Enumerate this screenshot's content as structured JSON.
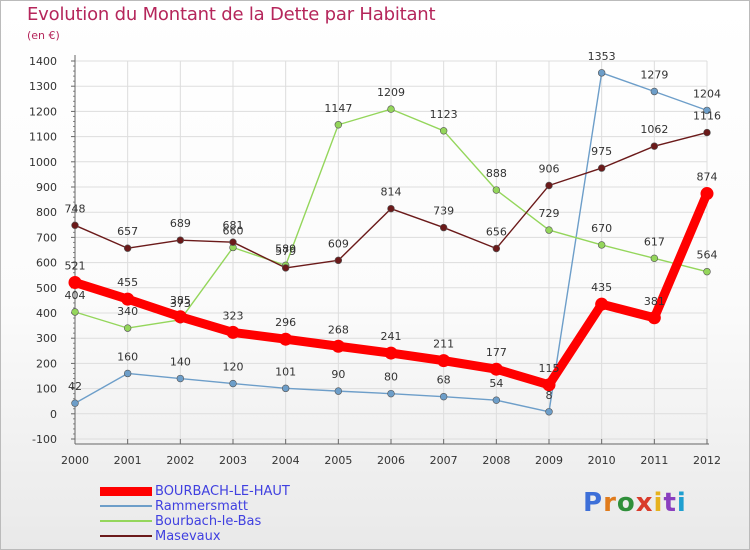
{
  "title": "Evolution du Montant de la Dette par Habitant",
  "unit": "(en €)",
  "brand": "Proxiti",
  "chart_data": {
    "type": "line",
    "title": "Evolution du Montant de la Dette par Habitant",
    "subtitle": "(en €)",
    "xlabel": "",
    "ylabel": "",
    "ylim": [
      -100,
      1400
    ],
    "yticks": [
      -100,
      0,
      100,
      200,
      300,
      400,
      500,
      600,
      700,
      800,
      900,
      1000,
      1100,
      1200,
      1300,
      1400
    ],
    "grid": true,
    "legend_position": "bottom-left",
    "x": [
      "2000",
      "2001",
      "2002",
      "2003",
      "2004",
      "2005",
      "2006",
      "2007",
      "2008",
      "2009",
      "2010",
      "2011",
      "2012"
    ],
    "series": [
      {
        "name": "BOURBACH-LE-HAUT",
        "color": "#ff0000",
        "values": [
          521,
          455,
          385,
          323,
          296,
          268,
          241,
          211,
          177,
          115,
          435,
          381,
          874
        ],
        "labels": [
          "521",
          "455",
          "385",
          "323",
          "296",
          "268",
          "241",
          "211",
          "177",
          "115",
          "435",
          "381",
          "874"
        ]
      },
      {
        "name": "Rammersmatt",
        "color": "#6d9ec9",
        "values": [
          42,
          160,
          140,
          120,
          101,
          90,
          80,
          68,
          54,
          8,
          1353,
          1279,
          1204
        ],
        "labels": [
          "42",
          "160",
          "140",
          "120",
          "101",
          "90",
          "80",
          "68",
          "54",
          "8",
          "1353",
          "1279",
          "1204"
        ]
      },
      {
        "name": "Bourbach-le-Bas",
        "color": "#94d65b",
        "values": [
          404,
          340,
          373,
          660,
          589,
          1147,
          1209,
          1123,
          888,
          729,
          670,
          617,
          564
        ],
        "labels": [
          "404",
          "340",
          "373",
          "660",
          "589",
          "1147",
          "1209",
          "1123",
          "888",
          "729",
          "670",
          "617",
          "564"
        ]
      },
      {
        "name": "Masevaux",
        "color": "#6b1a1a",
        "values": [
          748,
          657,
          689,
          681,
          579,
          609,
          814,
          739,
          656,
          906,
          975,
          1062,
          1116
        ],
        "labels": [
          "748",
          "657",
          "689",
          "681",
          "579",
          "609",
          "814",
          "739",
          "656",
          "906",
          "975",
          "1062",
          "1116"
        ]
      }
    ]
  }
}
